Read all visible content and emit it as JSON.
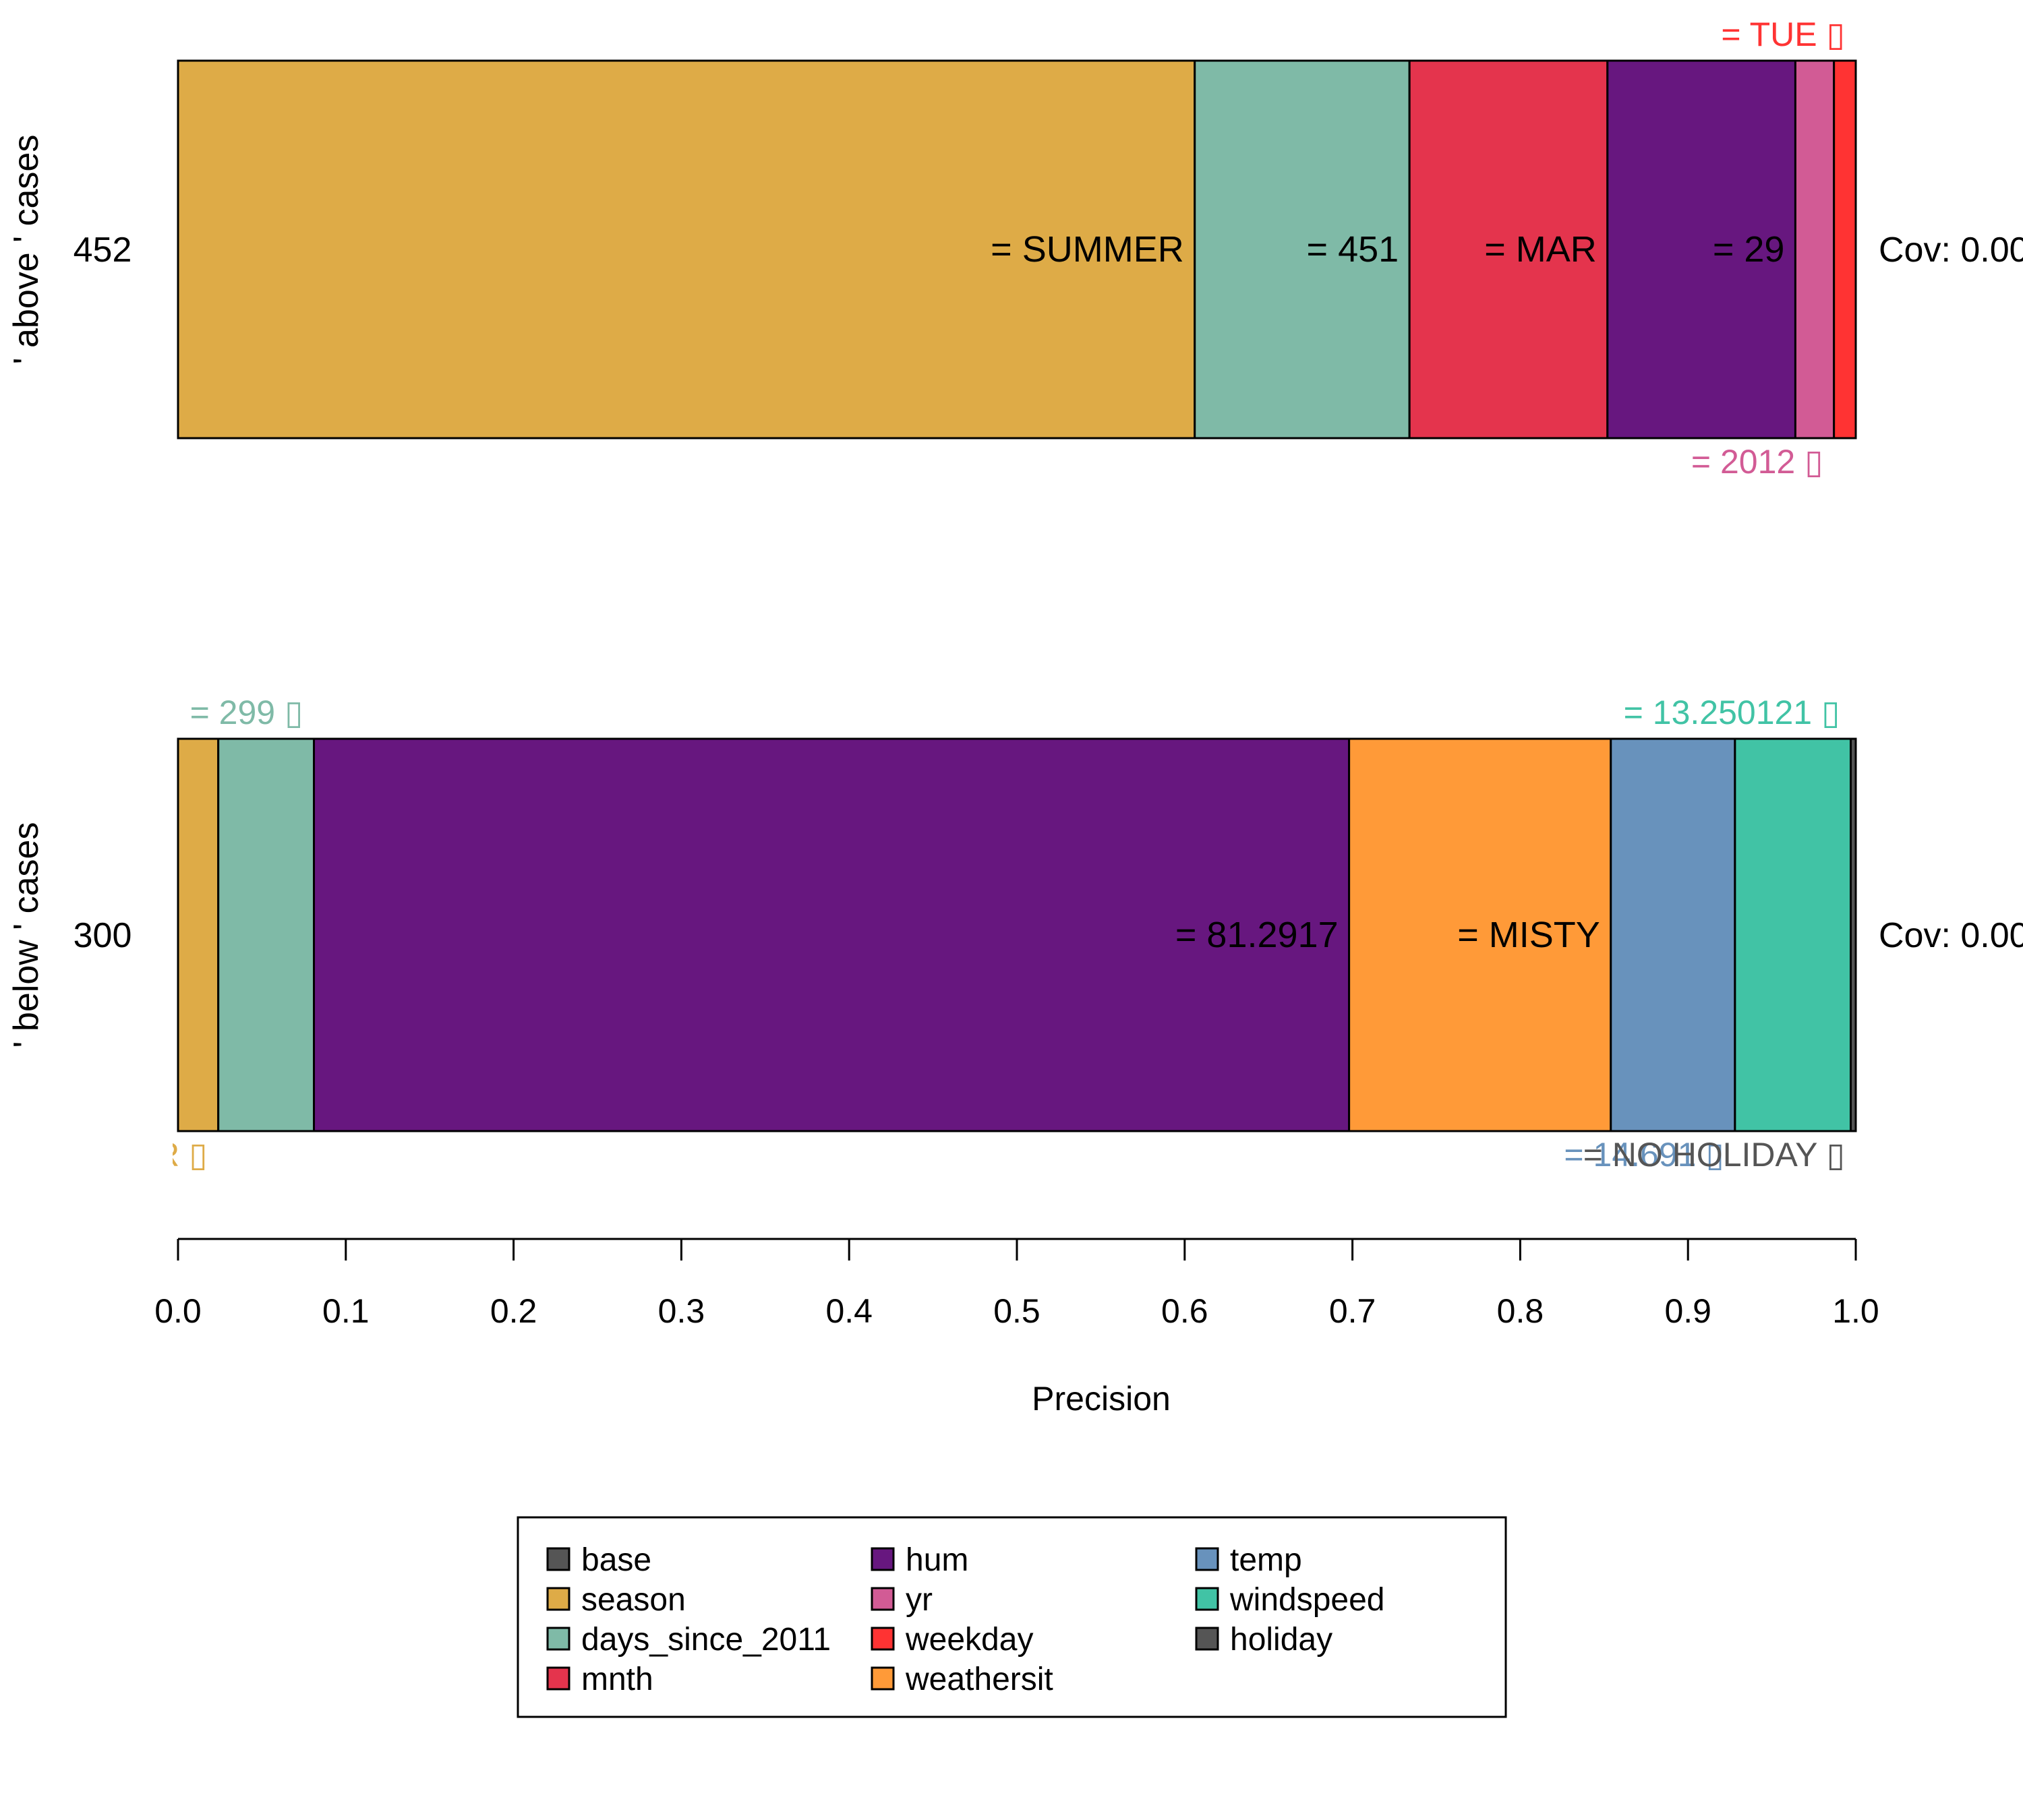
{
  "chart_data": {
    "type": "bar",
    "orientation": "horizontal-stacked",
    "xlabel": "Precision",
    "xlim": [
      0,
      1
    ],
    "xticks": [
      "0.0",
      "0.1",
      "0.2",
      "0.3",
      "0.4",
      "0.5",
      "0.6",
      "0.7",
      "0.8",
      "0.9",
      "1.0"
    ],
    "colors": {
      "base": "#555555",
      "season": "#DEAB47",
      "days_since_2011": "#7FBAA7",
      "mnth": "#E4344D",
      "hum": "#67177F",
      "yr": "#D25B95",
      "weekday": "#FF3333",
      "weathersit": "#FF9A38",
      "temp": "#6892BC",
      "windspeed": "#41C3A5",
      "holiday": "#555555"
    },
    "bars": [
      {
        "label": "' above ' cases",
        "case_id": "452",
        "coverage": "Cov: 0.00",
        "segments": [
          {
            "feature": "season",
            "start": 0.0,
            "end": 0.606,
            "text": "= SUMMER",
            "label_pos": "inside"
          },
          {
            "feature": "days_since_2011",
            "start": 0.606,
            "end": 0.734,
            "text": "= 451",
            "label_pos": "inside"
          },
          {
            "feature": "mnth",
            "start": 0.734,
            "end": 0.852,
            "text": "= MAR",
            "label_pos": "inside"
          },
          {
            "feature": "hum",
            "start": 0.852,
            "end": 0.964,
            "text": "= 29",
            "label_pos": "inside"
          },
          {
            "feature": "yr",
            "start": 0.964,
            "end": 0.987,
            "text": "= 2012 ▯",
            "label_pos": "below"
          },
          {
            "feature": "weekday",
            "start": 0.987,
            "end": 1.0,
            "text": "= TUE ▯",
            "label_pos": "above"
          }
        ]
      },
      {
        "label": "' below ' cases",
        "case_id": "300",
        "coverage": "Cov: 0.00",
        "segments": [
          {
            "feature": "season",
            "start": 0.0,
            "end": 0.024,
            "text": "= WINTER ▯",
            "label_pos": "below"
          },
          {
            "feature": "days_since_2011",
            "start": 0.024,
            "end": 0.081,
            "text": "= 299 ▯",
            "label_pos": "above"
          },
          {
            "feature": "hum",
            "start": 0.081,
            "end": 0.698,
            "text": "= 81.2917",
            "label_pos": "inside"
          },
          {
            "feature": "weathersit",
            "start": 0.698,
            "end": 0.854,
            "text": "= MISTY",
            "label_pos": "inside"
          },
          {
            "feature": "temp",
            "start": 0.854,
            "end": 0.928,
            "text": "= 14.691 ▯",
            "label_pos": "below"
          },
          {
            "feature": "windspeed",
            "start": 0.928,
            "end": 0.997,
            "text": "= 13.250121 ▯",
            "label_pos": "above"
          },
          {
            "feature": "holiday",
            "start": 0.997,
            "end": 1.0,
            "text": "= NO HOLIDAY ▯",
            "label_pos": "below"
          }
        ]
      }
    ],
    "legend": {
      "position": "bottom",
      "columns": [
        [
          "base",
          "season",
          "days_since_2011",
          "mnth"
        ],
        [
          "hum",
          "yr",
          "weekday",
          "weathersit"
        ],
        [
          "temp",
          "windspeed",
          "holiday"
        ]
      ]
    }
  }
}
